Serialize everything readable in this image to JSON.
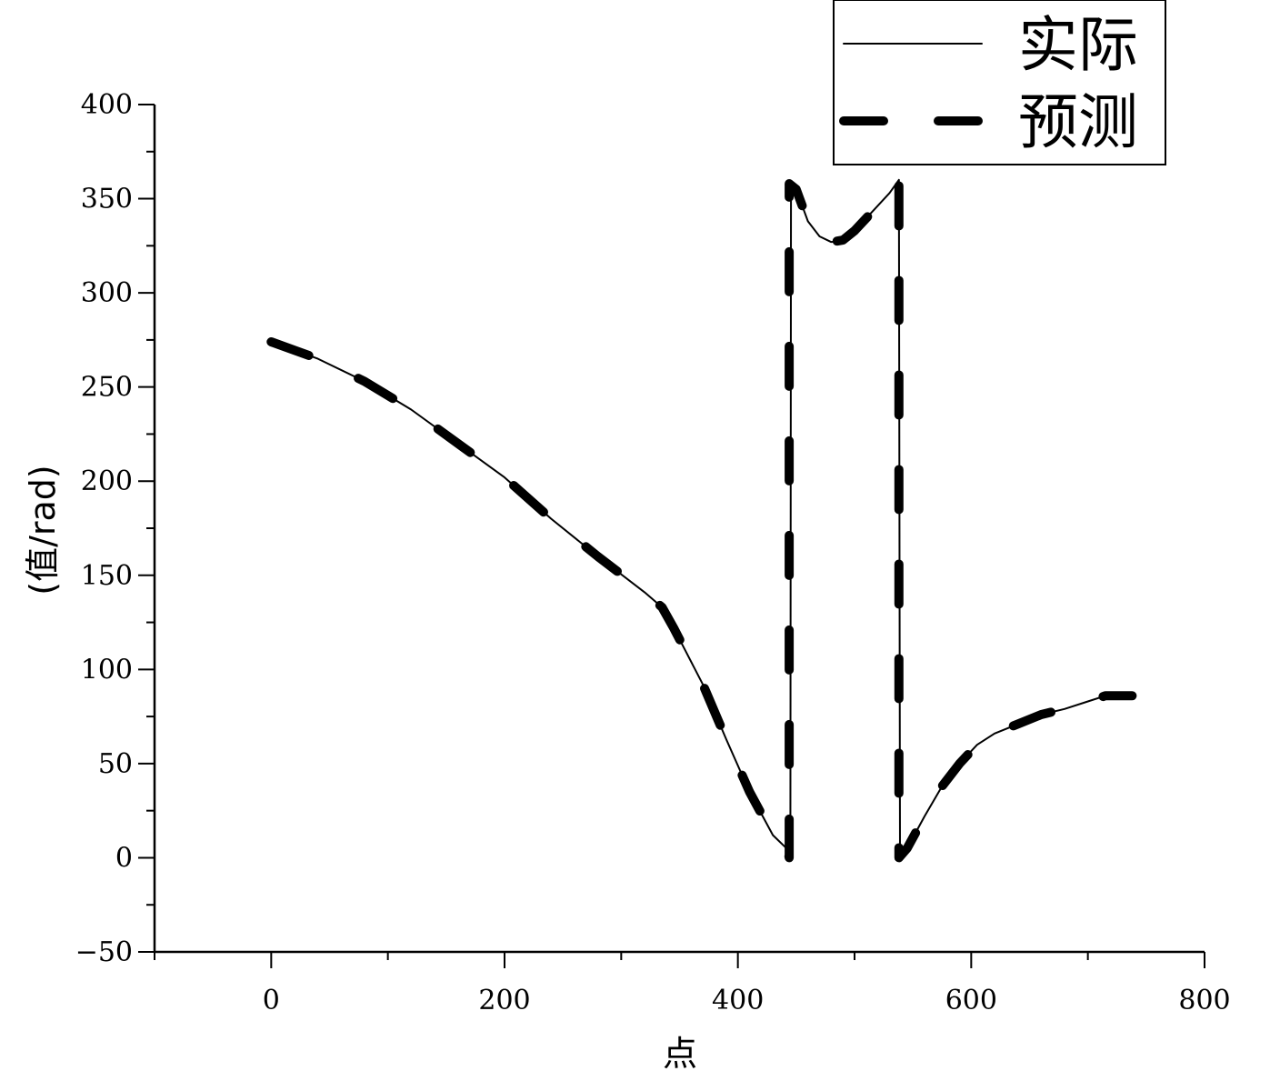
{
  "chart_data": {
    "type": "line",
    "title": "",
    "xlabel": "点",
    "ylabel": "(值/rad)",
    "xlim": [
      -100,
      800
    ],
    "ylim": [
      -50,
      400
    ],
    "x_ticks": [
      0,
      200,
      400,
      600,
      800
    ],
    "x_tick_labels": [
      "0",
      "200",
      "400",
      "600",
      "800"
    ],
    "y_ticks": [
      -50,
      0,
      50,
      100,
      150,
      200,
      250,
      300,
      350,
      400
    ],
    "y_tick_labels": [
      "−50",
      "0",
      "50",
      "100",
      "150",
      "200",
      "250",
      "300",
      "350",
      "400"
    ],
    "grid": false,
    "legend_position": "top-right",
    "series": [
      {
        "name": "实际",
        "style": "solid-thin",
        "color": "#000000",
        "points": [
          [
            0,
            274
          ],
          [
            40,
            265
          ],
          [
            80,
            253
          ],
          [
            120,
            238
          ],
          [
            160,
            220
          ],
          [
            200,
            202
          ],
          [
            240,
            180
          ],
          [
            280,
            160
          ],
          [
            320,
            141
          ],
          [
            335,
            133
          ],
          [
            345,
            122
          ],
          [
            355,
            110
          ],
          [
            370,
            92
          ],
          [
            390,
            63
          ],
          [
            410,
            35
          ],
          [
            430,
            12
          ],
          [
            445,
            3
          ],
          [
            445.5,
            358
          ],
          [
            450,
            355
          ],
          [
            460,
            338
          ],
          [
            470,
            330
          ],
          [
            480,
            327
          ],
          [
            490,
            328
          ],
          [
            500,
            333
          ],
          [
            515,
            343
          ],
          [
            530,
            353
          ],
          [
            538,
            360
          ],
          [
            539,
            2
          ],
          [
            545,
            5
          ],
          [
            560,
            22
          ],
          [
            575,
            38
          ],
          [
            590,
            50
          ],
          [
            605,
            60
          ],
          [
            620,
            66
          ],
          [
            640,
            71
          ],
          [
            660,
            76
          ],
          [
            680,
            79
          ],
          [
            700,
            83
          ],
          [
            715,
            86
          ],
          [
            730,
            86
          ],
          [
            738,
            86
          ]
        ]
      },
      {
        "name": "预测",
        "style": "dashed-thick",
        "color": "#000000",
        "points": [
          [
            0,
            274
          ],
          [
            40,
            265
          ],
          [
            80,
            253
          ],
          [
            120,
            238
          ],
          [
            160,
            220
          ],
          [
            200,
            202
          ],
          [
            240,
            180
          ],
          [
            280,
            160
          ],
          [
            320,
            141
          ],
          [
            335,
            133
          ],
          [
            345,
            122
          ],
          [
            355,
            110
          ],
          [
            370,
            92
          ],
          [
            390,
            63
          ],
          [
            410,
            35
          ],
          [
            430,
            12
          ],
          [
            443,
            3
          ],
          [
            444,
            0
          ],
          [
            444,
            358
          ],
          [
            450,
            355
          ],
          [
            460,
            338
          ],
          [
            470,
            330
          ],
          [
            480,
            327
          ],
          [
            490,
            328
          ],
          [
            500,
            333
          ],
          [
            515,
            343
          ],
          [
            530,
            353
          ],
          [
            538,
            360
          ],
          [
            538,
            0
          ],
          [
            545,
            5
          ],
          [
            560,
            22
          ],
          [
            575,
            38
          ],
          [
            590,
            50
          ],
          [
            605,
            60
          ],
          [
            620,
            66
          ],
          [
            640,
            71
          ],
          [
            660,
            76
          ],
          [
            680,
            79
          ],
          [
            700,
            83
          ],
          [
            715,
            86
          ],
          [
            730,
            86
          ],
          [
            738,
            86
          ]
        ]
      }
    ]
  }
}
